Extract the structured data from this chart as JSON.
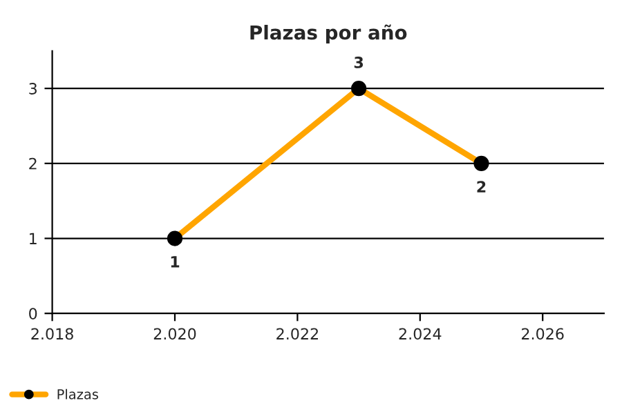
{
  "chart_data": {
    "type": "line",
    "title": "Plazas por año",
    "x": [
      2.02,
      2.023,
      2.025
    ],
    "series": [
      {
        "name": "Plazas",
        "color": "#ffa500",
        "values": [
          1,
          3,
          2
        ]
      }
    ],
    "xlim": [
      2.018,
      2.027
    ],
    "xticks": [
      2.018,
      {
        "value": 2.02,
        "label": "2.020"
      },
      2.022,
      2.024,
      2.026
    ],
    "ylim": [
      0,
      3.5
    ],
    "yticks": [
      0,
      1,
      2,
      3
    ],
    "grid": "y",
    "legend": "bottom left",
    "marker": "circle",
    "line_style": "solid",
    "data_labels": true
  }
}
